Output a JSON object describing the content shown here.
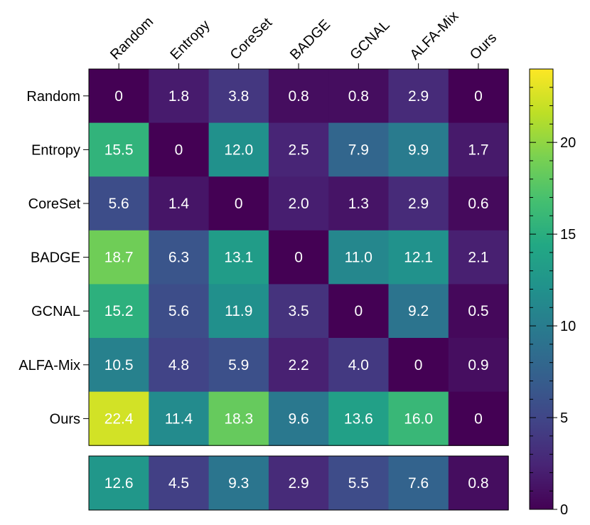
{
  "chart_data": {
    "type": "heatmap",
    "title": "",
    "columns": [
      "Random",
      "Entropy",
      "CoreSet",
      "BADGE",
      "GCNAL",
      "ALFA-Mix",
      "Ours"
    ],
    "rows": [
      "Random",
      "Entropy",
      "CoreSet",
      "BADGE",
      "GCNAL",
      "ALFA-Mix",
      "Ours"
    ],
    "values": [
      [
        0,
        1.8,
        3.8,
        0.8,
        0.8,
        2.9,
        0
      ],
      [
        15.5,
        0,
        12.0,
        2.5,
        7.9,
        9.9,
        1.7
      ],
      [
        5.6,
        1.4,
        0,
        2.0,
        1.3,
        2.9,
        0.6
      ],
      [
        18.7,
        6.3,
        13.1,
        0,
        11.0,
        12.1,
        2.1
      ],
      [
        15.2,
        5.6,
        11.9,
        3.5,
        0,
        9.2,
        0.5
      ],
      [
        10.5,
        4.8,
        5.9,
        2.2,
        4.0,
        0,
        0.9
      ],
      [
        22.4,
        11.4,
        18.3,
        9.6,
        13.6,
        16.0,
        0
      ]
    ],
    "value_labels": [
      [
        "0",
        "1.8",
        "3.8",
        "0.8",
        "0.8",
        "2.9",
        "0"
      ],
      [
        "15.5",
        "0",
        "12.0",
        "2.5",
        "7.9",
        "9.9",
        "1.7"
      ],
      [
        "5.6",
        "1.4",
        "0",
        "2.0",
        "1.3",
        "2.9",
        "0.6"
      ],
      [
        "18.7",
        "6.3",
        "13.1",
        "0",
        "11.0",
        "12.1",
        "2.1"
      ],
      [
        "15.2",
        "5.6",
        "11.9",
        "3.5",
        "0",
        "9.2",
        "0.5"
      ],
      [
        "10.5",
        "4.8",
        "5.9",
        "2.2",
        "4.0",
        "0",
        "0.9"
      ],
      [
        "22.4",
        "11.4",
        "18.3",
        "9.6",
        "13.6",
        "16.0",
        "0"
      ]
    ],
    "summary_row": {
      "values": [
        12.6,
        4.5,
        9.3,
        2.9,
        5.5,
        7.6,
        0.8
      ],
      "labels": [
        "12.6",
        "4.5",
        "9.3",
        "2.9",
        "5.5",
        "7.6",
        "0.8"
      ]
    },
    "colorbar": {
      "colormap": "viridis",
      "vmin": 0,
      "vmax": 24,
      "ticks": [
        0,
        5,
        10,
        15,
        20
      ],
      "tick_labels": [
        "0",
        "5",
        "10",
        "15",
        "20"
      ],
      "minor_ticks": [
        1,
        2,
        3,
        4,
        6,
        7,
        8,
        9,
        11,
        12,
        13,
        14,
        16,
        17,
        18,
        19,
        21,
        22,
        23
      ]
    },
    "grid": false,
    "colors": {
      "text_on_cells": "#ffffff",
      "frame": "#000000"
    }
  }
}
